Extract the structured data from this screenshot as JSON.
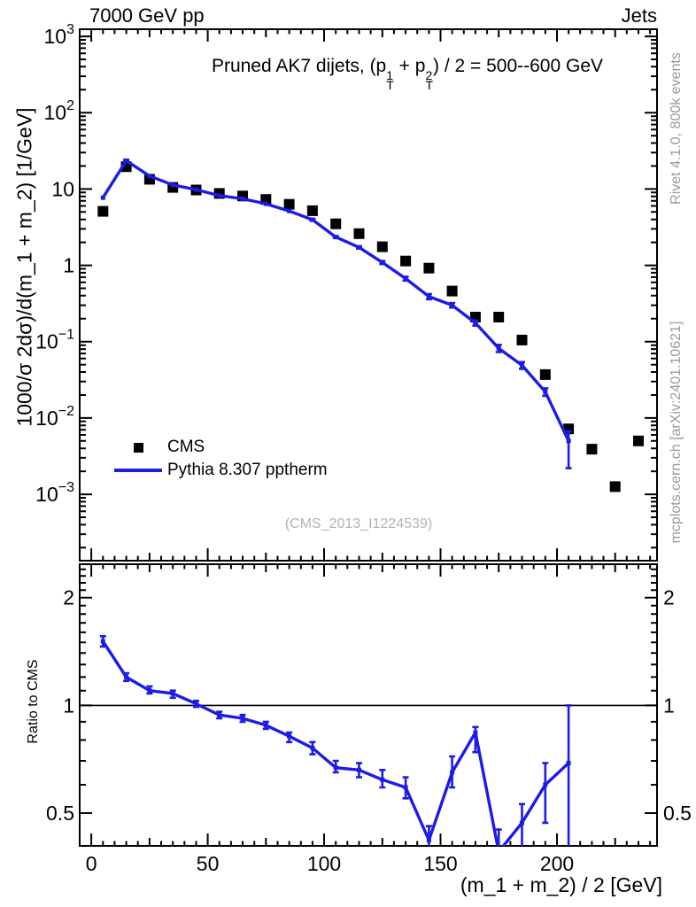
{
  "header": {
    "left": "7000 GeV pp",
    "right": "Jets"
  },
  "side_texts": {
    "top_right": "Rivet 4.1.0,  800k events",
    "bottom_right": "mcplots.cern.ch [arXiv:2401.10621]"
  },
  "watermark": {
    "text": "(CMS_2013_I1224539)"
  },
  "main_panel": {
    "title_parts": [
      {
        "t": "Pruned AK7 dijets, (p"
      },
      {
        "sup": "1",
        "sub": "T"
      },
      {
        "t": " + p"
      },
      {
        "sup": "2",
        "sub": "T"
      },
      {
        "t": ") / 2 = 500--600 GeV"
      }
    ],
    "ylabel": "1000/σ  2dσ)/d(m_1 + m_2) [1/GeV]",
    "ytick_exponents": [
      3,
      2,
      1,
      0,
      -1,
      -2,
      -3
    ],
    "legend": [
      {
        "label": "CMS",
        "marker": "square",
        "color": "#000000"
      },
      {
        "label": "Pythia 8.307 pptherm",
        "marker": "line",
        "color": "#1c1ce6"
      }
    ]
  },
  "ratio_panel": {
    "ylabel": "Ratio to CMS",
    "ytick_labels": [
      "2",
      "1",
      "0.5"
    ],
    "ytick_values": [
      2,
      1,
      0.5
    ]
  },
  "xaxis": {
    "label": "(m_1 + m_2) / 2 [GeV]",
    "ticks": [
      0,
      50,
      100,
      150,
      200
    ]
  },
  "colors": {
    "cms": "#000000",
    "pythia": "#1c1ce6",
    "frame": "#000000",
    "gray_text": "#9a9a9a"
  },
  "chart_data": [
    {
      "type": "line",
      "title": "Pruned AK7 dijets, (p_T^1 + p_T^2) / 2 = 500--600 GeV",
      "xlabel": "(m_1 + m_2) / 2 [GeV]",
      "ylabel": "1000/σ  2dσ)/d(m_1 + m_2) [1/GeV]",
      "legend_position": "left-middle",
      "grid": false,
      "x_range": [
        -5,
        243
      ],
      "y_range_log": [
        0.000135,
        1240
      ],
      "x": [
        5,
        15,
        25,
        35,
        45,
        55,
        65,
        75,
        85,
        95,
        105,
        115,
        125,
        135,
        145,
        155,
        165,
        175,
        185,
        195,
        205,
        215,
        225,
        235
      ],
      "series": [
        {
          "name": "CMS",
          "style": "filled-squares",
          "color": "#000000",
          "values": [
            5.1,
            19.6,
            13.4,
            10.5,
            9.7,
            8.75,
            8.1,
            7.3,
            6.3,
            5.2,
            3.5,
            2.6,
            1.75,
            1.14,
            0.92,
            0.46,
            0.21,
            0.21,
            0.105,
            0.037,
            0.0072,
            0.0039,
            0.00126,
            0.005
          ]
        },
        {
          "name": "Pythia 8.307 pptherm",
          "style": "line-with-markers",
          "color": "#1c1ce6",
          "values": [
            7.7,
            23.5,
            14.8,
            11.3,
            9.8,
            8.2,
            7.45,
            6.4,
            5.15,
            3.95,
            2.35,
            1.72,
            1.09,
            0.67,
            0.39,
            0.3,
            0.176,
            0.082,
            0.049,
            0.022,
            0.005,
            null,
            null,
            null
          ],
          "err_lo": [
            null,
            22.8,
            null,
            null,
            null,
            null,
            null,
            null,
            null,
            3.85,
            2.29,
            1.66,
            1.04,
            0.63,
            0.36,
            0.28,
            0.162,
            0.073,
            0.044,
            0.0195,
            0.0022,
            null,
            null,
            null
          ],
          "err_hi": [
            null,
            24.2,
            null,
            null,
            null,
            null,
            null,
            null,
            null,
            4.05,
            2.41,
            1.78,
            1.14,
            0.71,
            0.42,
            0.32,
            0.19,
            0.091,
            0.054,
            0.0245,
            0.0067,
            null,
            null,
            null
          ]
        }
      ]
    },
    {
      "type": "line",
      "title": "",
      "ylabel": "Ratio to CMS",
      "grid": false,
      "x_range": [
        -5,
        243
      ],
      "y_range_log": [
        0.405,
        2.48
      ],
      "refline": 1,
      "x": [
        5,
        15,
        25,
        35,
        45,
        55,
        65,
        75,
        85,
        95,
        105,
        115,
        125,
        135,
        145,
        155,
        165,
        175,
        185,
        195,
        205,
        215,
        225,
        235
      ],
      "series": [
        {
          "name": "Pythia 8.307 pptherm / CMS",
          "style": "line-with-markers",
          "color": "#1c1ce6",
          "values": [
            1.51,
            1.2,
            1.1,
            1.08,
            1.01,
            0.94,
            0.92,
            0.88,
            0.82,
            0.76,
            0.67,
            0.66,
            0.62,
            0.59,
            0.42,
            0.65,
            0.84,
            0.39,
            0.47,
            0.6,
            0.69,
            null,
            null,
            null
          ],
          "err_lo": [
            1.46,
            1.17,
            1.08,
            1.05,
            0.99,
            0.92,
            0.9,
            0.86,
            0.79,
            0.73,
            0.65,
            0.63,
            0.59,
            0.55,
            0.38,
            0.59,
            0.74,
            0.33,
            0.36,
            0.47,
            0.38,
            null,
            null,
            null
          ],
          "err_hi": [
            1.56,
            1.23,
            1.13,
            1.1,
            1.03,
            0.96,
            0.94,
            0.9,
            0.84,
            0.79,
            0.7,
            0.69,
            0.66,
            0.63,
            0.46,
            0.72,
            0.87,
            0.45,
            0.53,
            0.69,
            1.0,
            null,
            null,
            null
          ]
        }
      ]
    }
  ]
}
